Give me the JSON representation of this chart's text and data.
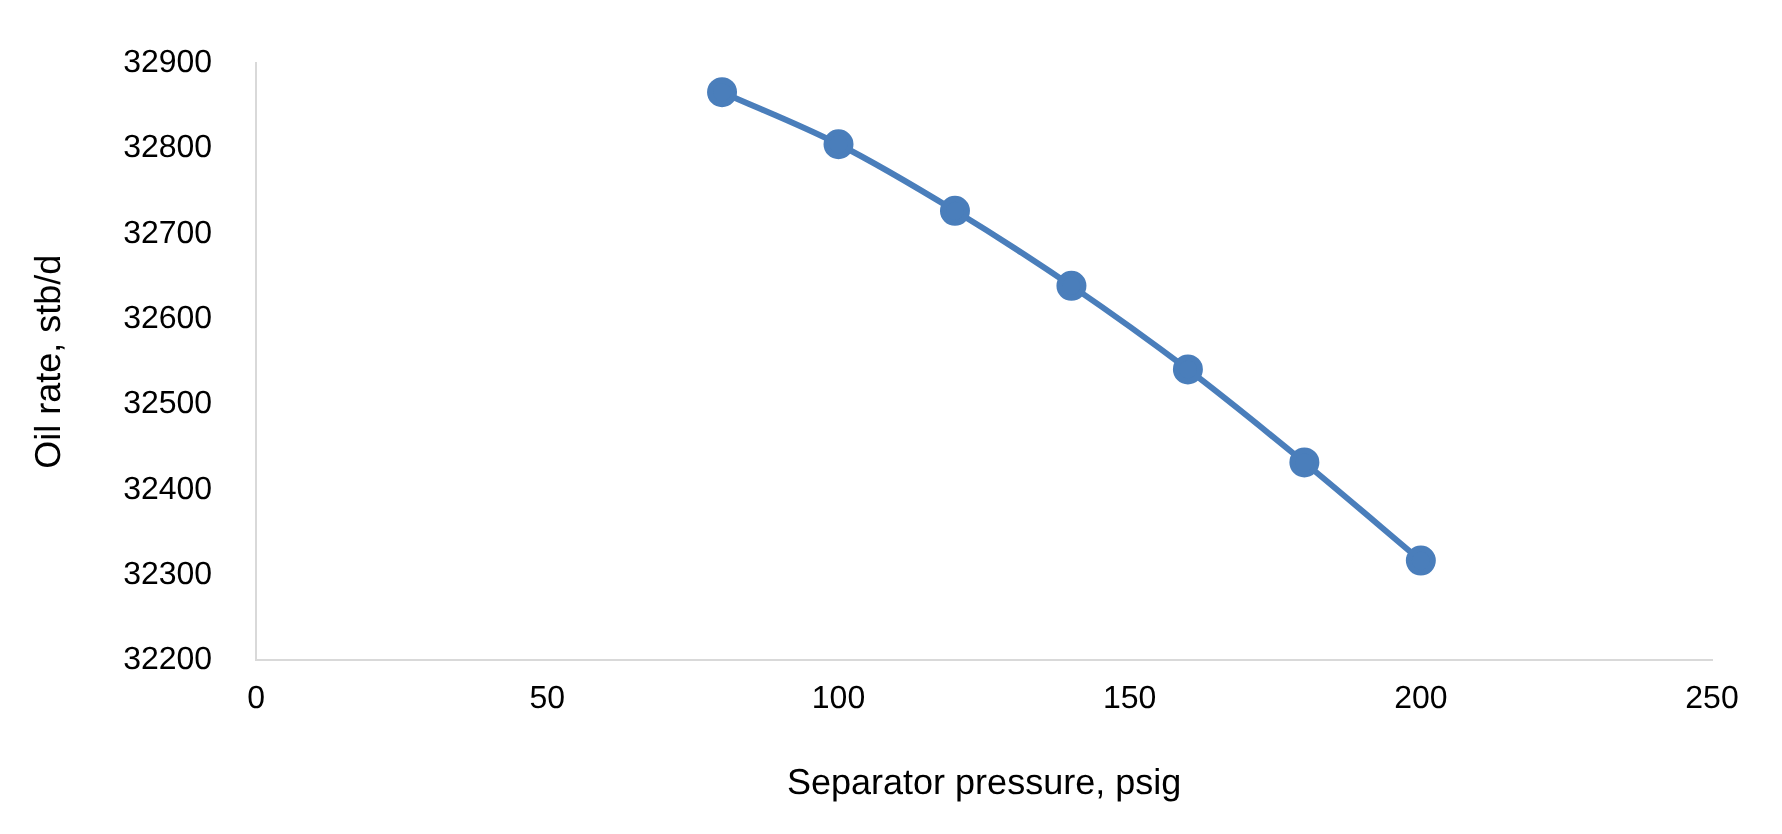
{
  "chart_data": {
    "type": "line",
    "xlabel": "Separator pressure, psig",
    "ylabel": "Oil rate, stb/d",
    "x": [
      80,
      100,
      120,
      140,
      160,
      180,
      200
    ],
    "series": [
      {
        "color": "#4a7ebb",
        "values": [
          32866,
          32805,
          32727,
          32639,
          32541,
          32432,
          32317
        ]
      }
    ],
    "xlim": [
      0,
      250
    ],
    "xticks": [
      0,
      50,
      100,
      150,
      200,
      250
    ],
    "ylim": [
      32200,
      32900
    ],
    "yticks": [
      32200,
      32300,
      32400,
      32500,
      32600,
      32700,
      32800,
      32900
    ],
    "grid": false,
    "legend": false,
    "marker": "circle",
    "line_style": "solid"
  }
}
